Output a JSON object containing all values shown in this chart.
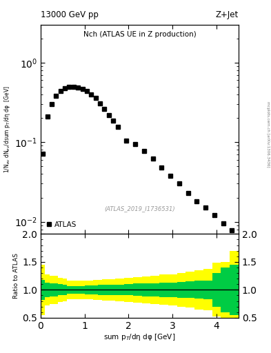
{
  "title_left": "13000 GeV pp",
  "title_right": "Z+Jet",
  "plot_title": "Nch (ATLAS UE in Z production)",
  "xlabel": "sum p$_T$/dη dφ [GeV]",
  "ylabel": "1/N$_{ev}$ dN$_{ev}$/dsum p$_T$/dη dφ  [GeV]",
  "ylabel_ratio": "Ratio to ATLAS",
  "watermark": "(ATLAS_2019_I1736531)",
  "sidewatermark": "mcplots.cern.ch [arXiv:1306.3436]",
  "data_x": [
    0.05,
    0.15,
    0.25,
    0.35,
    0.45,
    0.55,
    0.65,
    0.75,
    0.85,
    0.95,
    1.05,
    1.15,
    1.25,
    1.35,
    1.45,
    1.55,
    1.65,
    1.75,
    1.95,
    2.15,
    2.35,
    2.55,
    2.75,
    2.95,
    3.15,
    3.35,
    3.55,
    3.75,
    3.95,
    4.15,
    4.35
  ],
  "data_y": [
    0.072,
    0.21,
    0.3,
    0.38,
    0.44,
    0.48,
    0.5,
    0.5,
    0.49,
    0.47,
    0.44,
    0.4,
    0.36,
    0.31,
    0.26,
    0.22,
    0.185,
    0.155,
    0.105,
    0.095,
    0.078,
    0.062,
    0.048,
    0.038,
    0.03,
    0.023,
    0.018,
    0.015,
    0.012,
    0.0095,
    0.0078
  ],
  "xlim": [
    0,
    4.5
  ],
  "ylim_log": [
    0.007,
    3.0
  ],
  "ylim_ratio": [
    0.5,
    2.0
  ],
  "ratio_green_lo": [
    0.82,
    0.87,
    0.88,
    0.88,
    0.9,
    0.91,
    0.93,
    0.93,
    0.93,
    0.93,
    0.92,
    0.92,
    0.92,
    0.91,
    0.91,
    0.91,
    0.91,
    0.91,
    0.9,
    0.89,
    0.88,
    0.88,
    0.87,
    0.87,
    0.86,
    0.85,
    0.84,
    0.83,
    0.7,
    0.6,
    0.55
  ],
  "ratio_green_hi": [
    1.18,
    1.13,
    1.12,
    1.12,
    1.1,
    1.09,
    1.07,
    1.07,
    1.07,
    1.07,
    1.08,
    1.08,
    1.08,
    1.09,
    1.09,
    1.09,
    1.09,
    1.09,
    1.1,
    1.11,
    1.12,
    1.12,
    1.13,
    1.13,
    1.14,
    1.15,
    1.16,
    1.17,
    1.3,
    1.4,
    1.45
  ],
  "ratio_yellow_lo": [
    0.55,
    0.72,
    0.75,
    0.75,
    0.78,
    0.8,
    0.83,
    0.83,
    0.83,
    0.83,
    0.83,
    0.83,
    0.82,
    0.82,
    0.81,
    0.81,
    0.81,
    0.8,
    0.78,
    0.77,
    0.76,
    0.75,
    0.73,
    0.72,
    0.7,
    0.68,
    0.65,
    0.63,
    0.52,
    0.5,
    0.5
  ],
  "ratio_yellow_hi": [
    1.45,
    1.28,
    1.25,
    1.25,
    1.22,
    1.2,
    1.17,
    1.17,
    1.17,
    1.17,
    1.17,
    1.17,
    1.18,
    1.18,
    1.19,
    1.19,
    1.19,
    1.2,
    1.22,
    1.23,
    1.24,
    1.25,
    1.27,
    1.28,
    1.3,
    1.32,
    1.35,
    1.37,
    1.48,
    1.5,
    1.7
  ],
  "ratio_bin_edges": [
    0.0,
    0.1,
    0.2,
    0.3,
    0.4,
    0.5,
    0.6,
    0.7,
    0.8,
    0.9,
    1.0,
    1.1,
    1.2,
    1.3,
    1.4,
    1.5,
    1.6,
    1.7,
    1.9,
    2.1,
    2.3,
    2.5,
    2.7,
    2.9,
    3.1,
    3.3,
    3.5,
    3.7,
    3.9,
    4.1,
    4.3,
    4.5
  ],
  "marker_color": "#000000",
  "marker_size": 4,
  "green_color": "#00cc44",
  "yellow_color": "#ffff00",
  "legend_label": "ATLAS",
  "xticks": [
    0,
    1,
    2,
    3,
    4
  ],
  "yticks_ratio": [
    0.5,
    1.0,
    1.5,
    2.0
  ]
}
